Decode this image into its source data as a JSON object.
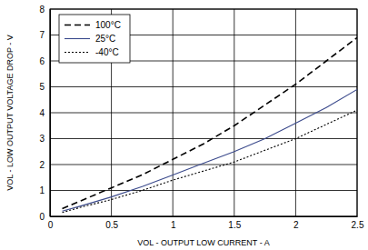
{
  "chart_data": {
    "type": "line",
    "x_label": "VOL - OUTPUT LOW CURRENT - A",
    "y_label": "VOL - LOW OUTPUT VOLTAGE DROP - V",
    "x": [
      0.1,
      0.25,
      0.5,
      0.75,
      1,
      1.25,
      1.5,
      1.75,
      2,
      2.25,
      2.5
    ],
    "series": [
      {
        "name": "100°C",
        "color": "#000000",
        "line_style": "dashed",
        "values": [
          0.3,
          0.6,
          1.1,
          1.6,
          2.2,
          2.8,
          3.5,
          4.3,
          5.1,
          6.0,
          6.9
        ]
      },
      {
        "name": "25°C",
        "color": "#3b4a8c",
        "line_style": "solid",
        "values": [
          0.2,
          0.4,
          0.75,
          1.15,
          1.6,
          2.05,
          2.5,
          3.0,
          3.6,
          4.2,
          4.9
        ]
      },
      {
        "name": "-40°C",
        "color": "#000000",
        "line_style": "dotted",
        "values": [
          0.15,
          0.35,
          0.65,
          1.0,
          1.4,
          1.75,
          2.1,
          2.55,
          3.0,
          3.55,
          4.1
        ]
      }
    ],
    "xlim": [
      0,
      2.5
    ],
    "xticks": [
      0,
      0.5,
      1,
      1.5,
      2,
      2.5
    ],
    "ylim": [
      0,
      8
    ],
    "yticks": [
      0,
      1,
      2,
      3,
      4,
      5,
      6,
      7,
      8
    ],
    "grid": true,
    "legend": "upper left"
  }
}
